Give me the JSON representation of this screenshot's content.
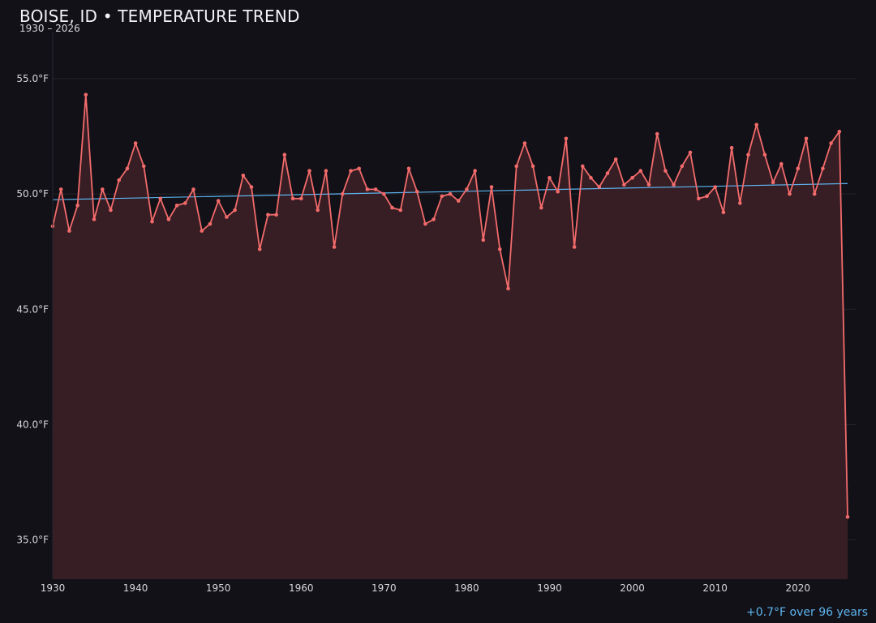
{
  "header": {
    "title": "BOISE, ID • TEMPERATURE TREND",
    "subtitle": "1930 – 2026"
  },
  "footer": {
    "trend_note": "+0.7°F over 96 years"
  },
  "colors": {
    "background": "#121117",
    "series_line": "#f26b6b",
    "series_fill": "#3a1f25",
    "trend_line": "#5db4ef",
    "gridline": "#26232b"
  },
  "chart_data": {
    "type": "area",
    "title": "BOISE, ID • TEMPERATURE TREND",
    "subtitle": "1930 – 2026",
    "xlabel": "",
    "ylabel": "",
    "xlim": [
      1930,
      2026
    ],
    "ylim": [
      33.3,
      57.0
    ],
    "y_ticks": [
      35.0,
      40.0,
      45.0,
      50.0,
      55.0
    ],
    "y_tick_labels": [
      "35.0°F",
      "40.0°F",
      "45.0°F",
      "50.0°F",
      "55.0°F"
    ],
    "x_ticks": [
      1930,
      1940,
      1950,
      1960,
      1970,
      1980,
      1990,
      2000,
      2010,
      2020
    ],
    "x_tick_labels": [
      "1930",
      "1940",
      "1950",
      "1960",
      "1970",
      "1980",
      "1990",
      "2000",
      "2010",
      "2020"
    ],
    "grid": true,
    "legend": "none",
    "series": [
      {
        "x": [
          1930,
          1931,
          1932,
          1933,
          1934,
          1935,
          1936,
          1937,
          1938,
          1939,
          1940,
          1941,
          1942,
          1943,
          1944,
          1945,
          1946,
          1947,
          1948,
          1949,
          1950,
          1951,
          1952,
          1953,
          1954,
          1955,
          1956,
          1957,
          1958,
          1959,
          1960,
          1961,
          1962,
          1963,
          1964,
          1965,
          1966,
          1967,
          1968,
          1969,
          1970,
          1971,
          1972,
          1973,
          1974,
          1975,
          1976,
          1977,
          1978,
          1979,
          1980,
          1981,
          1982,
          1983,
          1984,
          1985,
          1986,
          1987,
          1988,
          1989,
          1990,
          1991,
          1992,
          1993,
          1994,
          1995,
          1996,
          1997,
          1998,
          1999,
          2000,
          2001,
          2002,
          2003,
          2004,
          2005,
          2006,
          2007,
          2008,
          2009,
          2010,
          2011,
          2012,
          2013,
          2014,
          2015,
          2016,
          2017,
          2018,
          2019,
          2020,
          2021,
          2022,
          2023,
          2024,
          2025,
          2026
        ],
        "y": [
          48.6,
          50.2,
          48.4,
          49.5,
          54.3,
          48.9,
          50.2,
          49.3,
          50.6,
          51.1,
          52.2,
          51.2,
          48.8,
          49.8,
          48.9,
          49.5,
          49.6,
          50.2,
          48.4,
          48.7,
          49.7,
          49.0,
          49.3,
          50.8,
          50.3,
          47.6,
          49.1,
          49.1,
          51.7,
          49.8,
          49.8,
          51.0,
          49.3,
          51.0,
          47.7,
          50.0,
          51.0,
          51.1,
          50.2,
          50.2,
          50.0,
          49.4,
          49.3,
          51.1,
          50.1,
          48.7,
          48.9,
          49.9,
          50.0,
          49.7,
          50.2,
          51.0,
          48.0,
          50.3,
          47.6,
          45.9,
          51.2,
          52.2,
          51.2,
          49.4,
          50.7,
          50.1,
          52.4,
          47.7,
          51.2,
          50.7,
          50.3,
          50.9,
          51.5,
          50.4,
          50.7,
          51.0,
          50.4,
          52.6,
          51.0,
          50.4,
          51.2,
          51.8,
          49.8,
          49.9,
          50.3,
          49.2,
          52.0,
          49.6,
          51.7,
          53.0,
          51.7,
          50.5,
          51.3,
          50.0,
          51.1,
          52.4,
          50.0,
          51.1,
          52.2,
          52.7,
          36.0
        ]
      }
    ],
    "trend": {
      "x": [
        1930,
        2026
      ],
      "y": [
        49.75,
        50.45
      ]
    }
  }
}
